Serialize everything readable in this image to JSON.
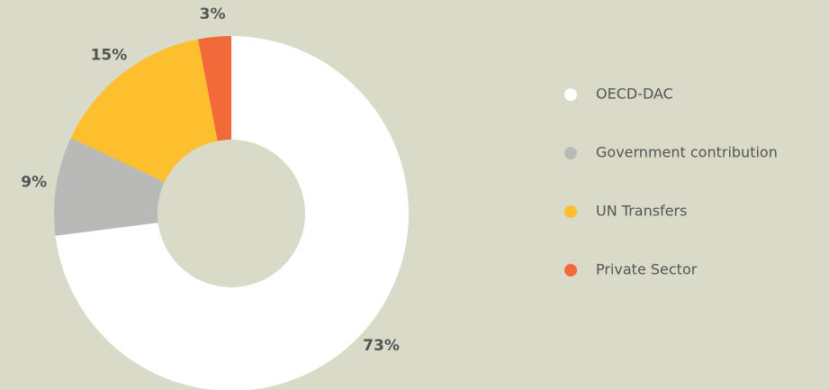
{
  "chart_data": {
    "type": "donut",
    "categories": [
      "OECD-DAC",
      "Government contribution",
      "UN Transfers",
      "Private Sector"
    ],
    "values": [
      73,
      9,
      15,
      3
    ],
    "value_labels": [
      "73%",
      "9%",
      "15%",
      "3%"
    ],
    "colors": [
      "#ffffff",
      "#b9bab7",
      "#fdbf2d",
      "#f26a3a"
    ],
    "legend": "right"
  }
}
